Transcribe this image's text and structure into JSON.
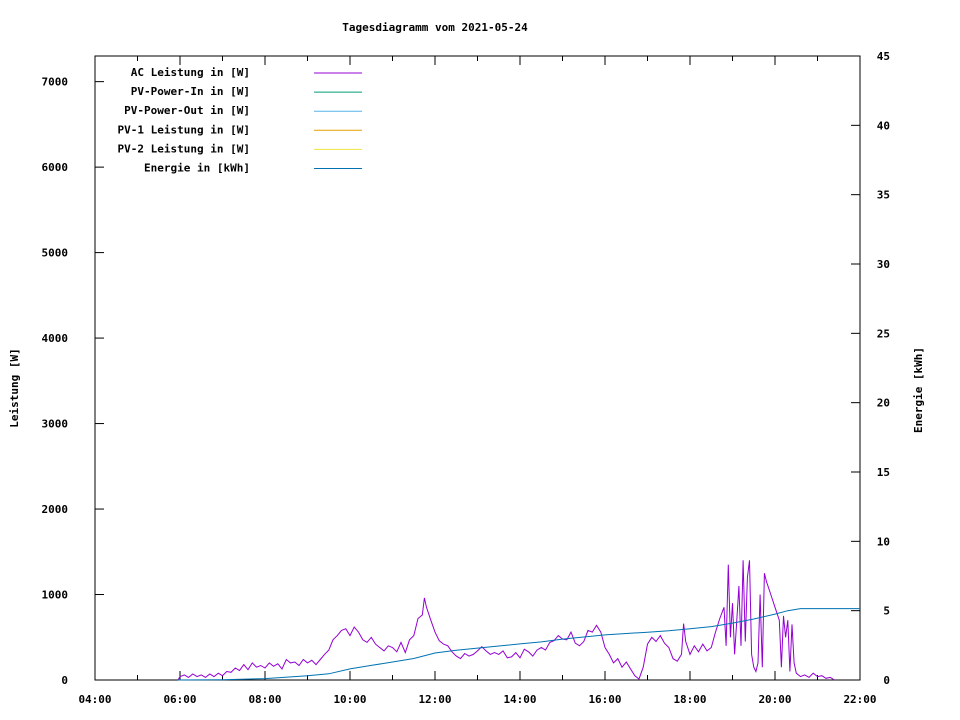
{
  "chart_data": {
    "type": "line",
    "title": "Tagesdiagramm vom 2021-05-24",
    "xlabel": "",
    "ylabel": "Leistung [W]",
    "y2label": "Energie [kWh]",
    "xlim": [
      4,
      22
    ],
    "ylim": [
      0,
      7300
    ],
    "y2lim": [
      0,
      45
    ],
    "x_ticks": [
      "04:00",
      "06:00",
      "08:00",
      "10:00",
      "12:00",
      "14:00",
      "16:00",
      "18:00",
      "20:00",
      "22:00"
    ],
    "y_ticks": [
      "0",
      "1000",
      "2000",
      "3000",
      "4000",
      "5000",
      "6000",
      "7000"
    ],
    "y2_ticks": [
      "0",
      "5",
      "10",
      "15",
      "20",
      "25",
      "30",
      "35",
      "40",
      "45"
    ],
    "grid": false,
    "legend_position": "top-left",
    "series": [
      {
        "name": "AC Leistung in [W]",
        "color": "#9400d3",
        "axis": "y",
        "points": [
          [
            5.95,
            0
          ],
          [
            6.0,
            40
          ],
          [
            6.1,
            60
          ],
          [
            6.2,
            30
          ],
          [
            6.3,
            70
          ],
          [
            6.4,
            40
          ],
          [
            6.5,
            60
          ],
          [
            6.6,
            30
          ],
          [
            6.7,
            70
          ],
          [
            6.8,
            40
          ],
          [
            6.9,
            80
          ],
          [
            7.0,
            50
          ],
          [
            7.1,
            100
          ],
          [
            7.2,
            90
          ],
          [
            7.3,
            140
          ],
          [
            7.4,
            110
          ],
          [
            7.5,
            180
          ],
          [
            7.6,
            120
          ],
          [
            7.7,
            200
          ],
          [
            7.8,
            150
          ],
          [
            7.9,
            170
          ],
          [
            8.0,
            140
          ],
          [
            8.1,
            200
          ],
          [
            8.2,
            160
          ],
          [
            8.3,
            190
          ],
          [
            8.4,
            130
          ],
          [
            8.5,
            240
          ],
          [
            8.6,
            200
          ],
          [
            8.7,
            210
          ],
          [
            8.8,
            170
          ],
          [
            8.9,
            240
          ],
          [
            9.0,
            200
          ],
          [
            9.1,
            230
          ],
          [
            9.2,
            180
          ],
          [
            9.3,
            240
          ],
          [
            9.4,
            300
          ],
          [
            9.5,
            350
          ],
          [
            9.6,
            470
          ],
          [
            9.7,
            520
          ],
          [
            9.8,
            580
          ],
          [
            9.9,
            600
          ],
          [
            10.0,
            520
          ],
          [
            10.1,
            620
          ],
          [
            10.2,
            560
          ],
          [
            10.3,
            470
          ],
          [
            10.4,
            440
          ],
          [
            10.5,
            500
          ],
          [
            10.6,
            420
          ],
          [
            10.7,
            380
          ],
          [
            10.8,
            340
          ],
          [
            10.9,
            400
          ],
          [
            11.0,
            380
          ],
          [
            11.1,
            330
          ],
          [
            11.2,
            440
          ],
          [
            11.3,
            320
          ],
          [
            11.4,
            470
          ],
          [
            11.5,
            520
          ],
          [
            11.6,
            720
          ],
          [
            11.7,
            760
          ],
          [
            11.75,
            960
          ],
          [
            11.8,
            850
          ],
          [
            11.9,
            700
          ],
          [
            12.0,
            560
          ],
          [
            12.1,
            460
          ],
          [
            12.2,
            420
          ],
          [
            12.3,
            400
          ],
          [
            12.4,
            330
          ],
          [
            12.5,
            280
          ],
          [
            12.6,
            250
          ],
          [
            12.7,
            310
          ],
          [
            12.8,
            280
          ],
          [
            12.9,
            300
          ],
          [
            13.0,
            340
          ],
          [
            13.1,
            390
          ],
          [
            13.2,
            340
          ],
          [
            13.3,
            300
          ],
          [
            13.4,
            320
          ],
          [
            13.5,
            300
          ],
          [
            13.6,
            340
          ],
          [
            13.7,
            260
          ],
          [
            13.8,
            270
          ],
          [
            13.9,
            320
          ],
          [
            14.0,
            260
          ],
          [
            14.1,
            360
          ],
          [
            14.2,
            330
          ],
          [
            14.3,
            280
          ],
          [
            14.4,
            350
          ],
          [
            14.5,
            380
          ],
          [
            14.6,
            350
          ],
          [
            14.7,
            440
          ],
          [
            14.8,
            460
          ],
          [
            14.9,
            520
          ],
          [
            15.0,
            480
          ],
          [
            15.1,
            470
          ],
          [
            15.2,
            560
          ],
          [
            15.3,
            430
          ],
          [
            15.4,
            400
          ],
          [
            15.5,
            450
          ],
          [
            15.6,
            580
          ],
          [
            15.7,
            560
          ],
          [
            15.8,
            640
          ],
          [
            15.9,
            560
          ],
          [
            16.0,
            380
          ],
          [
            16.1,
            300
          ],
          [
            16.2,
            200
          ],
          [
            16.3,
            250
          ],
          [
            16.4,
            150
          ],
          [
            16.5,
            210
          ],
          [
            16.6,
            130
          ],
          [
            16.7,
            50
          ],
          [
            16.8,
            10
          ],
          [
            16.9,
            150
          ],
          [
            17.0,
            420
          ],
          [
            17.1,
            500
          ],
          [
            17.2,
            450
          ],
          [
            17.3,
            520
          ],
          [
            17.4,
            430
          ],
          [
            17.5,
            380
          ],
          [
            17.6,
            250
          ],
          [
            17.7,
            220
          ],
          [
            17.8,
            300
          ],
          [
            17.85,
            660
          ],
          [
            17.9,
            450
          ],
          [
            18.0,
            300
          ],
          [
            18.1,
            400
          ],
          [
            18.2,
            330
          ],
          [
            18.3,
            420
          ],
          [
            18.4,
            340
          ],
          [
            18.5,
            380
          ],
          [
            18.6,
            560
          ],
          [
            18.7,
            720
          ],
          [
            18.8,
            850
          ],
          [
            18.85,
            400
          ],
          [
            18.9,
            1350
          ],
          [
            18.95,
            500
          ],
          [
            19.0,
            900
          ],
          [
            19.05,
            300
          ],
          [
            19.1,
            700
          ],
          [
            19.15,
            1100
          ],
          [
            19.2,
            400
          ],
          [
            19.25,
            1400
          ],
          [
            19.3,
            450
          ],
          [
            19.35,
            1200
          ],
          [
            19.4,
            1400
          ],
          [
            19.45,
            300
          ],
          [
            19.5,
            150
          ],
          [
            19.55,
            100
          ],
          [
            19.6,
            200
          ],
          [
            19.65,
            1000
          ],
          [
            19.7,
            150
          ],
          [
            19.75,
            1250
          ],
          [
            19.8,
            1150
          ],
          [
            19.9,
            1000
          ],
          [
            20.0,
            850
          ],
          [
            20.1,
            700
          ],
          [
            20.15,
            150
          ],
          [
            20.2,
            750
          ],
          [
            20.25,
            500
          ],
          [
            20.3,
            700
          ],
          [
            20.35,
            100
          ],
          [
            20.4,
            650
          ],
          [
            20.45,
            200
          ],
          [
            20.5,
            80
          ],
          [
            20.6,
            40
          ],
          [
            20.7,
            60
          ],
          [
            20.8,
            30
          ],
          [
            20.9,
            80
          ],
          [
            21.0,
            40
          ],
          [
            21.1,
            50
          ],
          [
            21.2,
            20
          ],
          [
            21.3,
            30
          ],
          [
            21.4,
            0
          ]
        ]
      },
      {
        "name": "PV-Power-In in [W]",
        "color": "#009e73",
        "axis": "y",
        "points": []
      },
      {
        "name": "PV-Power-Out in [W]",
        "color": "#56b4e9",
        "axis": "y",
        "points": []
      },
      {
        "name": "PV-1 Leistung in [W]",
        "color": "#e69f00",
        "axis": "y",
        "points": []
      },
      {
        "name": "PV-2 Leistung in [W]",
        "color": "#f0e442",
        "axis": "y",
        "points": []
      },
      {
        "name": "Energie in [kWh]",
        "color": "#0072b2",
        "axis": "y2",
        "points": [
          [
            5.95,
            0
          ],
          [
            7.0,
            0.02
          ],
          [
            8.0,
            0.1
          ],
          [
            9.0,
            0.3
          ],
          [
            9.5,
            0.45
          ],
          [
            10.0,
            0.8
          ],
          [
            10.5,
            1.05
          ],
          [
            11.0,
            1.3
          ],
          [
            11.5,
            1.55
          ],
          [
            12.0,
            1.95
          ],
          [
            12.5,
            2.15
          ],
          [
            13.0,
            2.3
          ],
          [
            13.5,
            2.45
          ],
          [
            14.0,
            2.6
          ],
          [
            14.5,
            2.75
          ],
          [
            15.0,
            2.95
          ],
          [
            15.5,
            3.1
          ],
          [
            16.0,
            3.25
          ],
          [
            16.5,
            3.35
          ],
          [
            17.0,
            3.45
          ],
          [
            17.5,
            3.55
          ],
          [
            18.0,
            3.7
          ],
          [
            18.5,
            3.85
          ],
          [
            19.0,
            4.1
          ],
          [
            19.5,
            4.4
          ],
          [
            20.0,
            4.75
          ],
          [
            20.3,
            5.0
          ],
          [
            20.6,
            5.15
          ],
          [
            22.0,
            5.15
          ]
        ]
      }
    ]
  }
}
